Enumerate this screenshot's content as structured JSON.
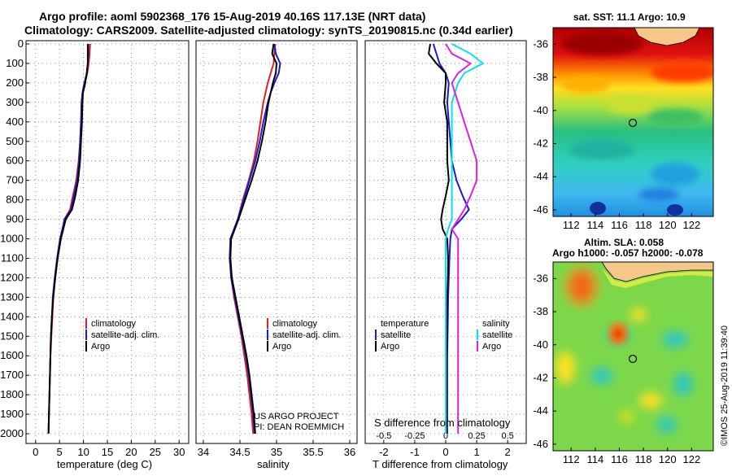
{
  "title": {
    "line1": "Argo profile: aoml 5902368_176 15-Aug-2019 40.16S 117.13E (NRT data)",
    "line2": "Climatology: CARS2009. Satellite-adjusted climatology: synTS_20190815.nc (0.34d earlier)"
  },
  "colors": {
    "climatology": "#e02020",
    "satellite": "#1a1ad0",
    "argo": "#000000",
    "cyan": "#00e5ee",
    "magenta": "#e020e0"
  },
  "chart_data": [
    {
      "type": "line",
      "title": "",
      "xlabel": "temperature (deg C)",
      "ylabel": "",
      "xlim": [
        -2,
        32
      ],
      "ylim": [
        2050,
        0
      ],
      "xticks": [
        "0",
        "5",
        "10",
        "15",
        "20",
        "25",
        "30"
      ],
      "yticks": [
        "0",
        "100",
        "200",
        "300",
        "400",
        "500",
        "600",
        "700",
        "800",
        "900",
        "1000",
        "1100",
        "1200",
        "1300",
        "1400",
        "1500",
        "1600",
        "1700",
        "1800",
        "1900",
        "2000"
      ],
      "legend": [
        "climatology",
        "satellite-adj. clim.",
        "Argo"
      ],
      "series": [
        {
          "name": "climatology",
          "color": "#e02020",
          "x": [
            11.4,
            11.3,
            11.1,
            10.8,
            10.2,
            9.9,
            9.7,
            9.5,
            9.3,
            9.0,
            8.5,
            7.8,
            7.2,
            6.0,
            5.2,
            4.6,
            4.1,
            3.7,
            3.5,
            3.3,
            3.1,
            3.0,
            2.9,
            2.8,
            2.7
          ],
          "y": [
            0,
            50,
            100,
            150,
            210,
            250,
            300,
            400,
            500,
            600,
            700,
            780,
            850,
            900,
            1000,
            1100,
            1200,
            1300,
            1400,
            1500,
            1600,
            1700,
            1800,
            1900,
            2000
          ]
        },
        {
          "name": "satellite-adj. clim.",
          "color": "#1a1ad0",
          "x": [
            11.0,
            11.0,
            10.9,
            10.7,
            10.1,
            9.8,
            9.6,
            9.5,
            9.3,
            9.1,
            8.7,
            8.0,
            7.4,
            6.1,
            5.1,
            4.5,
            4.0,
            3.6,
            3.4,
            3.2,
            3.1,
            3.0,
            2.9,
            2.8,
            2.7
          ],
          "y": [
            0,
            50,
            100,
            150,
            210,
            250,
            300,
            400,
            500,
            600,
            700,
            780,
            850,
            900,
            1000,
            1100,
            1200,
            1300,
            1400,
            1500,
            1600,
            1700,
            1800,
            1900,
            2000
          ]
        },
        {
          "name": "Argo",
          "color": "#000000",
          "x": [
            10.9,
            10.9,
            10.9,
            10.7,
            10.3,
            9.9,
            9.8,
            9.7,
            9.5,
            9.3,
            8.9,
            8.3,
            7.6,
            6.3,
            5.3,
            4.6,
            4.1,
            3.7,
            3.4,
            3.2,
            3.1,
            3.0,
            2.9,
            2.8,
            2.7
          ],
          "y": [
            0,
            50,
            100,
            150,
            210,
            250,
            300,
            400,
            500,
            600,
            700,
            780,
            850,
            900,
            1000,
            1100,
            1200,
            1300,
            1400,
            1500,
            1600,
            1700,
            1800,
            1900,
            2000
          ]
        }
      ]
    },
    {
      "type": "line",
      "xlabel": "salinity",
      "xlim": [
        33.9,
        36.1
      ],
      "ylim": [
        2050,
        0
      ],
      "xticks": [
        "34",
        "34.5",
        "35",
        "35.5",
        "36"
      ],
      "legend": [
        "climatology",
        "satellite-adj. clim.",
        "Argo"
      ],
      "annotations": [
        "US ARGO PROJECT",
        "PI: DEAN ROEMMICH"
      ],
      "series": [
        {
          "name": "climatology",
          "color": "#e02020",
          "x": [
            34.98,
            34.97,
            34.96,
            34.92,
            34.88,
            34.85,
            34.82,
            34.78,
            34.74,
            34.69,
            34.62,
            34.54,
            34.47,
            34.42,
            34.37,
            34.36,
            34.38,
            34.42,
            34.47,
            34.52,
            34.56,
            34.6,
            34.63,
            34.66,
            34.68
          ],
          "y": [
            0,
            50,
            100,
            150,
            200,
            250,
            300,
            400,
            500,
            600,
            700,
            800,
            900,
            950,
            1000,
            1100,
            1200,
            1300,
            1400,
            1500,
            1600,
            1700,
            1800,
            1900,
            2000
          ]
        },
        {
          "name": "satellite-adj. clim.",
          "color": "#1a1ad0",
          "x": [
            34.97,
            34.99,
            35.05,
            35.03,
            34.97,
            34.92,
            34.88,
            34.82,
            34.77,
            34.71,
            34.63,
            34.55,
            34.47,
            34.42,
            34.37,
            34.36,
            34.38,
            34.43,
            34.48,
            34.53,
            34.58,
            34.62,
            34.65,
            34.68,
            34.7
          ],
          "y": [
            0,
            50,
            100,
            150,
            200,
            250,
            300,
            400,
            500,
            600,
            700,
            800,
            900,
            950,
            1000,
            1100,
            1200,
            1300,
            1400,
            1500,
            1600,
            1700,
            1800,
            1900,
            2000
          ]
        },
        {
          "name": "Argo",
          "color": "#000000",
          "x": [
            34.96,
            34.94,
            35.0,
            34.99,
            34.95,
            34.92,
            34.89,
            34.85,
            34.8,
            34.74,
            34.66,
            34.57,
            34.48,
            34.43,
            34.38,
            34.37,
            34.39,
            34.44,
            34.49,
            34.54,
            34.59,
            34.63,
            34.66,
            34.69,
            34.71
          ],
          "y": [
            0,
            50,
            100,
            150,
            200,
            250,
            300,
            400,
            500,
            600,
            700,
            800,
            900,
            950,
            1000,
            1100,
            1200,
            1300,
            1400,
            1500,
            1600,
            1700,
            1800,
            1900,
            2000
          ]
        }
      ]
    },
    {
      "type": "line",
      "xlabel": "T difference from climatology",
      "xlabel_top": "S difference from climatology",
      "xlim": [
        -2.6,
        2.6
      ],
      "ylim": [
        2050,
        0
      ],
      "xticks": [
        "-2",
        "-1",
        "0",
        "1",
        "2"
      ],
      "xticks_top": [
        "-0.5",
        "-0.25",
        "0",
        "0.25",
        "0.5"
      ],
      "legend_left_title": "temperature",
      "legend_left": [
        "satellite",
        "Argo"
      ],
      "legend_right_title": "salinity",
      "legend_right": [
        "satellite",
        "Argo"
      ],
      "series": [
        {
          "name": "temperature satellite",
          "color": "#1a1ad0",
          "x": [
            -0.4,
            -0.3,
            -0.2,
            0.0,
            0.1,
            0.05,
            0.1,
            0.15,
            0.2,
            0.35,
            0.55,
            0.75,
            0.5,
            0.2,
            0.15,
            0.12,
            0.1,
            0.08,
            0.07,
            0.06,
            0.05,
            0.05,
            0.05,
            0.05,
            0.05
          ],
          "y": [
            0,
            50,
            100,
            150,
            200,
            300,
            400,
            500,
            600,
            700,
            780,
            850,
            900,
            950,
            1000,
            1100,
            1200,
            1300,
            1400,
            1500,
            1600,
            1700,
            1800,
            1900,
            2000
          ]
        },
        {
          "name": "temperature Argo",
          "color": "#000000",
          "x": [
            -0.5,
            -0.55,
            -0.3,
            0.0,
            0.0,
            -0.05,
            0.05,
            0.05,
            0.05,
            0.1,
            0.0,
            -0.1,
            -0.15,
            -0.1,
            0.05,
            0.08,
            0.07,
            0.05,
            0.04,
            0.04,
            0.03,
            0.03,
            0.03,
            0.03,
            0.03
          ],
          "y": [
            0,
            50,
            100,
            150,
            200,
            300,
            400,
            500,
            600,
            700,
            780,
            850,
            900,
            950,
            1000,
            1100,
            1200,
            1300,
            1400,
            1500,
            1600,
            1700,
            1800,
            1900,
            2000
          ]
        },
        {
          "name": "salinity satellite",
          "color": "#00e5ee",
          "x": [
            0.05,
            0.2,
            0.3,
            0.15,
            0.1,
            0.05,
            0.05,
            0.05,
            0.05,
            0.05,
            0.05,
            0.05,
            0.05,
            0.02,
            0.0,
            0.0,
            0.0,
            0.0,
            0.0,
            0.0,
            0.0,
            0.0,
            0.0,
            0.0,
            0.0
          ],
          "y": [
            0,
            50,
            100,
            150,
            200,
            300,
            400,
            500,
            600,
            700,
            780,
            850,
            900,
            950,
            1000,
            1100,
            1200,
            1300,
            1400,
            1500,
            1600,
            1700,
            1800,
            1900,
            2000
          ]
        },
        {
          "name": "salinity Argo",
          "color": "#e020e0",
          "x": [
            0.0,
            0.05,
            0.2,
            0.1,
            0.05,
            0.1,
            0.15,
            0.2,
            0.25,
            0.25,
            0.2,
            0.15,
            0.1,
            0.05,
            0.1,
            0.1,
            0.1,
            0.1,
            0.1,
            0.1,
            0.1,
            0.1,
            0.1,
            0.1,
            0.1
          ],
          "y": [
            0,
            50,
            100,
            150,
            200,
            300,
            400,
            500,
            600,
            700,
            780,
            850,
            900,
            950,
            1000,
            1100,
            1200,
            1300,
            1400,
            1500,
            1600,
            1700,
            1800,
            1900,
            2000
          ]
        }
      ]
    },
    {
      "type": "heatmap",
      "title": "sat. SST: 11.1  Argo: 10.9",
      "xticks": [
        "112",
        "114",
        "116",
        "118",
        "120",
        "122"
      ],
      "yticks": [
        "-36",
        "-38",
        "-40",
        "-42",
        "-44",
        "-46"
      ],
      "profile_location": {
        "lon": 117.13,
        "lat": -40.16
      }
    },
    {
      "type": "heatmap",
      "title": "Altim. SLA: 0.058",
      "subtitle": "Argo h1000: -0.057  h2000: -0.078",
      "xticks": [
        "112",
        "114",
        "116",
        "118",
        "120",
        "122"
      ],
      "yticks": [
        "-36",
        "-38",
        "-40",
        "-42",
        "-44",
        "-46"
      ],
      "profile_location": {
        "lon": 117.13,
        "lat": -40.16
      }
    }
  ],
  "footer": {
    "imos_stamp": "©IMOS 25-Aug-2019 11:39:40"
  }
}
